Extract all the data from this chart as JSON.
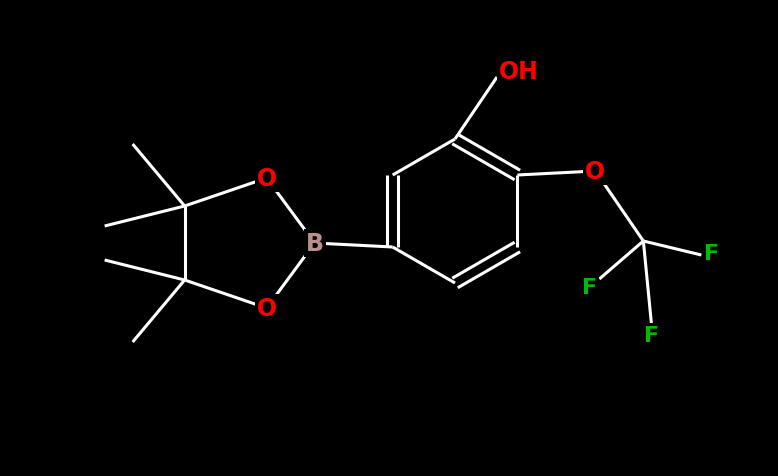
{
  "background_color": "#000000",
  "bond_color": "#ffffff",
  "atom_colors": {
    "O": "#ff0000",
    "B": "#bc8f8f",
    "F": "#00bb00",
    "OH": "#ff0000",
    "C": "#ffffff"
  },
  "fig_width": 7.78,
  "fig_height": 4.77,
  "dpi": 100,
  "xlim": [
    0,
    7.78
  ],
  "ylim": [
    0,
    4.77
  ],
  "bond_lw": 2.2,
  "font_size": 16
}
